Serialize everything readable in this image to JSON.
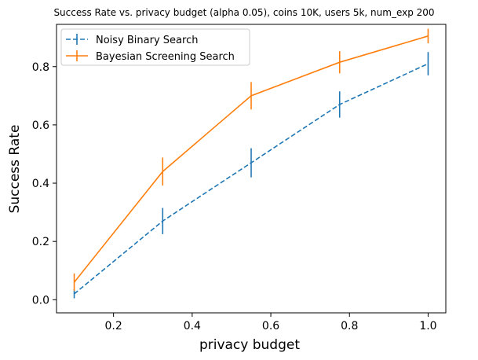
{
  "chart_data": {
    "type": "line",
    "title": "Success Rate vs. privacy budget (alpha 0.05), coins 10K, users 5k, num_exp 200",
    "xlabel": "privacy budget",
    "ylabel": "Success Rate",
    "xlim": [
      0.055,
      1.045
    ],
    "ylim": [
      -0.045,
      0.945
    ],
    "xticks": [
      "0.2",
      "0.4",
      "0.6",
      "0.8",
      "1.0"
    ],
    "yticks": [
      "0.0",
      "0.2",
      "0.4",
      "0.6",
      "0.8"
    ],
    "grid": false,
    "legend_position": "top-left",
    "x": [
      0.1,
      0.325,
      0.55,
      0.775,
      1.0
    ],
    "series": [
      {
        "name": "Noisy Binary Search",
        "color": "#1f77b4",
        "linestyle": "dashed",
        "values": [
          0.02,
          0.27,
          0.47,
          0.67,
          0.81
        ],
        "errors": [
          0.015,
          0.045,
          0.05,
          0.045,
          0.04
        ]
      },
      {
        "name": "Bayesian Screening Search",
        "color": "#ff7f0e",
        "linestyle": "solid",
        "values": [
          0.06,
          0.44,
          0.7,
          0.815,
          0.905
        ],
        "errors": [
          0.03,
          0.048,
          0.047,
          0.038,
          0.025
        ]
      }
    ]
  }
}
